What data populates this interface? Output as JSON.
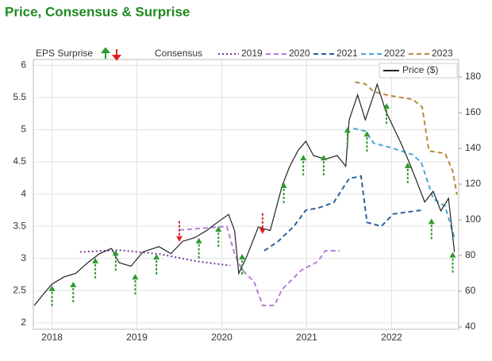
{
  "chart_data": {
    "type": "line",
    "title": "Price, Consensus & Surprise",
    "surprise_label": "EPS Surprise",
    "consensus_label": "Consensus",
    "xlim": [
      2017.78,
      2022.79
    ],
    "xticks": [
      2018,
      2019,
      2020,
      2021,
      2022
    ],
    "ylim": [
      1.9,
      6.09
    ],
    "yticks": [
      2,
      2.5,
      3,
      3.5,
      4,
      4.5,
      5,
      5.5,
      6
    ],
    "y2lim": [
      38.7,
      189.8
    ],
    "y2ticks": [
      40,
      60,
      80,
      100,
      120,
      140,
      160,
      180
    ],
    "grid": true,
    "series": [
      {
        "name": "2019",
        "color": "#7a3a9a",
        "dash": "dotted",
        "x": [
          2018.33,
          2018.79,
          2019.26,
          2019.73,
          2020.1
        ],
        "values": [
          3.1,
          3.13,
          3.07,
          2.95,
          2.89
        ]
      },
      {
        "name": "2020",
        "color": "#b77fd4",
        "dash": "dashed",
        "x": [
          2019.5,
          2020.06,
          2020.15,
          2020.24,
          2020.38,
          2020.48,
          2020.62,
          2020.71,
          2020.94,
          2021.13,
          2021.22,
          2021.39
        ],
        "values": [
          3.44,
          3.5,
          3.07,
          2.82,
          2.64,
          2.27,
          2.27,
          2.52,
          2.82,
          2.95,
          3.12,
          3.12
        ]
      },
      {
        "name": "2021",
        "color": "#2d5f9e",
        "dash": "dashed",
        "x": [
          2020.5,
          2020.66,
          2020.85,
          2020.99,
          2021.13,
          2021.32,
          2021.41,
          2021.5,
          2021.64,
          2021.71,
          2021.88,
          2022.02,
          2022.35
        ],
        "values": [
          3.12,
          3.26,
          3.5,
          3.75,
          3.78,
          3.87,
          4.06,
          4.24,
          4.28,
          3.56,
          3.5,
          3.69,
          3.75
        ]
      },
      {
        "name": "2022",
        "color": "#4aa8d4",
        "dash": "dashed",
        "x": [
          2021.55,
          2021.69,
          2021.79,
          2021.97,
          2022.11,
          2022.25,
          2022.35,
          2022.49,
          2022.63,
          2022.74
        ],
        "values": [
          5.02,
          4.98,
          4.79,
          4.73,
          4.67,
          4.61,
          4.49,
          3.93,
          3.81,
          3.32
        ]
      },
      {
        "name": "2023",
        "color": "#b8883c",
        "dash": "dashed",
        "x": [
          2021.57,
          2021.69,
          2021.79,
          2021.97,
          2022.25,
          2022.36,
          2022.44,
          2022.63,
          2022.72,
          2022.77
        ],
        "values": [
          5.74,
          5.71,
          5.59,
          5.53,
          5.47,
          5.35,
          4.67,
          4.63,
          4.36,
          3.99
        ]
      },
      {
        "name": "Price ($)",
        "color": "#222222",
        "dash": "solid",
        "axis": "y2",
        "x": [
          2017.79,
          2017.91,
          2018.0,
          2018.14,
          2018.28,
          2018.42,
          2018.56,
          2018.7,
          2018.79,
          2018.93,
          2019.07,
          2019.26,
          2019.4,
          2019.54,
          2019.68,
          2019.82,
          2019.96,
          2020.08,
          2020.15,
          2020.2,
          2020.29,
          2020.43,
          2020.57,
          2020.71,
          2020.8,
          2020.9,
          2020.99,
          2021.08,
          2021.22,
          2021.36,
          2021.46,
          2021.5,
          2021.6,
          2021.69,
          2021.79,
          2021.83,
          2021.93,
          2022.02,
          2022.11,
          2022.21,
          2022.3,
          2022.39,
          2022.49,
          2022.58,
          2022.67,
          2022.74
        ],
        "values": [
          52,
          59,
          64,
          68,
          70,
          76,
          81,
          84,
          76,
          74,
          82,
          85,
          81,
          88,
          90,
          94,
          99,
          103,
          94,
          70,
          79,
          96,
          94,
          119,
          130,
          139,
          144,
          136,
          134,
          136,
          130,
          156,
          170,
          156,
          170,
          176,
          161,
          152,
          143,
          132,
          121,
          110,
          116,
          105,
          112,
          82
        ]
      }
    ],
    "surprises": {
      "up_color": "#2e9a2e",
      "down_color": "#e02020",
      "x": [
        2018.0,
        2018.25,
        2018.51,
        2018.75,
        2018.98,
        2019.23,
        2019.5,
        2019.73,
        2019.96,
        2020.24,
        2020.48,
        2020.73,
        2020.96,
        2021.2,
        2021.48,
        2021.71,
        2021.94,
        2022.19,
        2022.47,
        2022.72
      ],
      "values": [
        2.58,
        2.64,
        3.01,
        3.13,
        2.76,
        3.07,
        3.26,
        3.32,
        3.5,
        3.07,
        3.38,
        4.18,
        4.61,
        4.61,
        5.04,
        4.98,
        5.41,
        4.49,
        3.62,
        3.1
      ],
      "direction": [
        "up",
        "up",
        "up",
        "up",
        "up",
        "up",
        "down",
        "up",
        "up",
        "up",
        "down",
        "up",
        "up",
        "up",
        "up",
        "up",
        "up",
        "up",
        "up",
        "up"
      ]
    }
  }
}
